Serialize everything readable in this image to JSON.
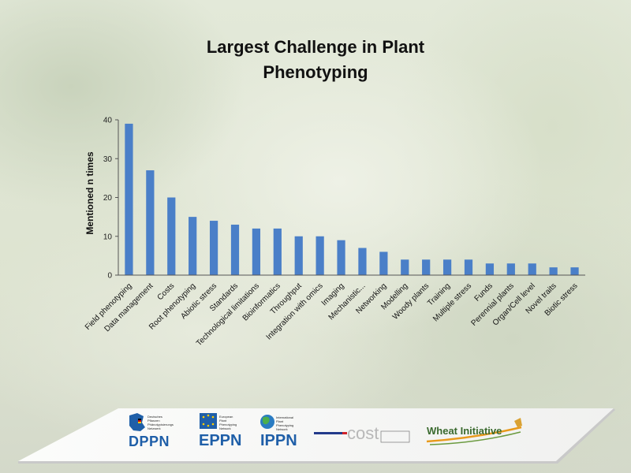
{
  "chart_data": {
    "type": "bar",
    "title_lines": [
      "Largest Challenge in Plant",
      "Phenotyping"
    ],
    "ylabel": "Mentioned n times",
    "xlabel": "",
    "ylim": [
      0,
      40
    ],
    "yticks": [
      0,
      10,
      20,
      30,
      40
    ],
    "grid": false,
    "bar_color": "#4a7fc8",
    "categories": [
      "Field phenotyping",
      "Data management",
      "Costs",
      "Root phenotyping",
      "Abiotic stress",
      "Standards",
      "Technological limitations",
      "Bioinformatics",
      "Throughput",
      "Integration with omics",
      "Imaging",
      "Mechanistic...",
      "Networking",
      "Modelling",
      "Woody plants",
      "Training",
      "Multiple stress",
      "Funds",
      "Perennial plants",
      "Organ/Cell level",
      "Novel traits",
      "Biotic stress"
    ],
    "values": [
      39,
      27,
      20,
      15,
      14,
      13,
      12,
      12,
      10,
      10,
      9,
      7,
      6,
      4,
      4,
      4,
      4,
      3,
      3,
      3,
      2,
      2
    ]
  },
  "logos": {
    "dppn": "DPPN",
    "dppn_sub": "Deutsches\nPflanzen\nPhänotypisierungs\nNetzwerk",
    "eppn": "EPPN",
    "eppn_sub": "European\nPlant\nPhenotyping\nNetwork",
    "ippn": "IPPN",
    "ippn_sub": "International\nPlant\nPhenotyping\nNetwork",
    "cost": "cost",
    "wheat": "Wheat Initiative"
  },
  "colors": {
    "bar": "#4a7fc8",
    "logo_blue": "#1f5fa8",
    "dppn_flag": [
      "#000000",
      "#dd0000",
      "#ffce00"
    ]
  }
}
